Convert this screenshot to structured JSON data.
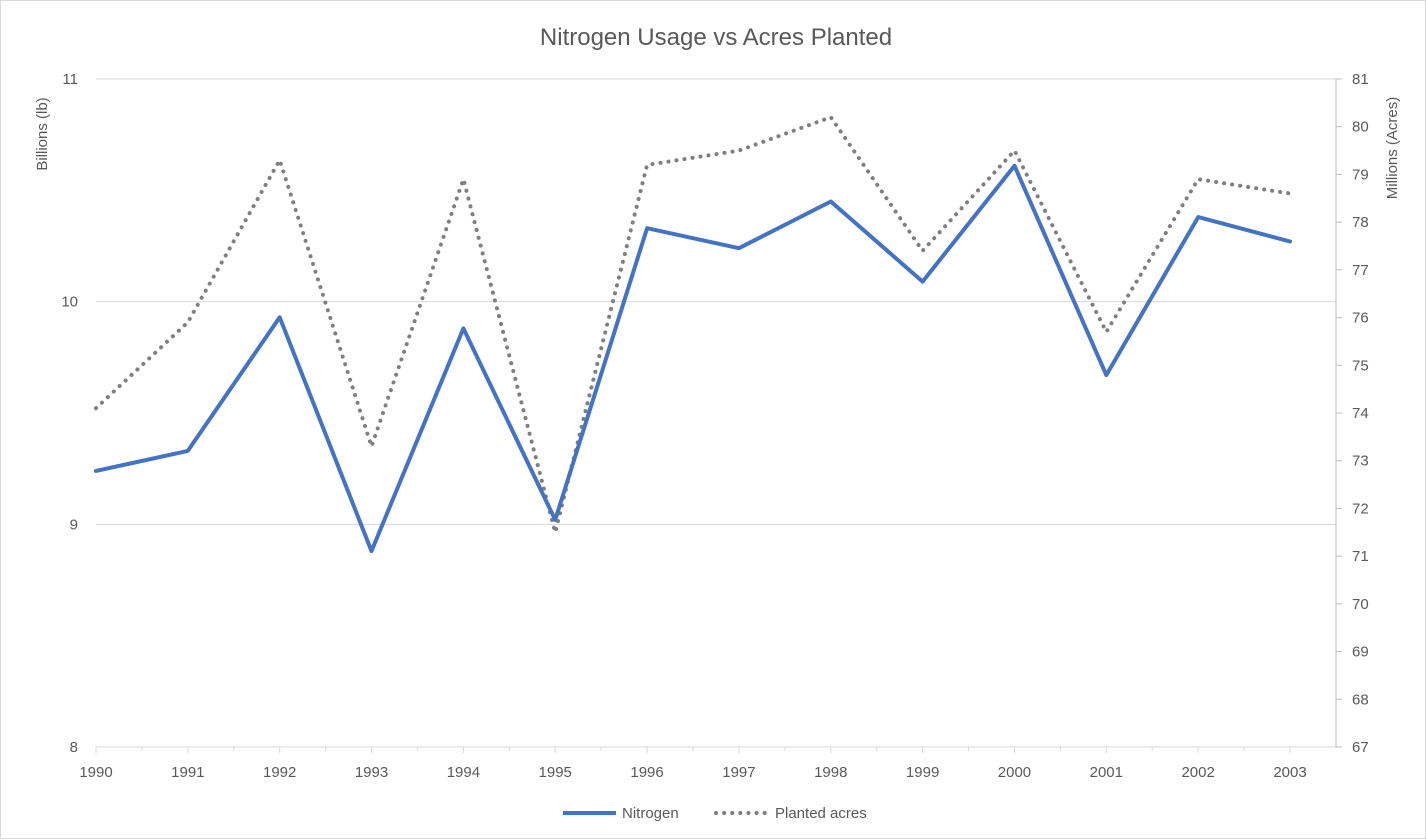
{
  "chart_data": {
    "type": "line",
    "title": "Nitrogen Usage vs Acres Planted",
    "categories": [
      "1990",
      "1991",
      "1992",
      "1993",
      "1994",
      "1995",
      "1996",
      "1997",
      "1998",
      "1999",
      "2000",
      "2001",
      "2002",
      "2003"
    ],
    "y_left": {
      "label": "Billions (lb)",
      "min": 8,
      "max": 11,
      "ticks": [
        "8",
        "9",
        "10",
        "11"
      ]
    },
    "y_right": {
      "label": "Millions (Acres)",
      "min": 67,
      "max": 81,
      "ticks": [
        "67",
        "68",
        "69",
        "70",
        "71",
        "72",
        "73",
        "74",
        "75",
        "76",
        "77",
        "78",
        "79",
        "80",
        "81"
      ]
    },
    "gridlines": true,
    "legend_position": "bottom",
    "series": [
      {
        "name": "Nitrogen",
        "axis": "left",
        "style": "solid",
        "color": "#4472c4",
        "values": [
          9.24,
          9.33,
          9.93,
          8.88,
          9.88,
          9.02,
          10.33,
          10.24,
          10.45,
          10.09,
          10.61,
          9.67,
          10.38,
          10.27
        ]
      },
      {
        "name": "Planted acres",
        "axis": "right",
        "style": "dotted",
        "color": "#7f7f7f",
        "values": [
          74.1,
          75.9,
          79.3,
          73.3,
          78.9,
          71.5,
          79.2,
          79.5,
          80.2,
          77.4,
          79.5,
          75.7,
          78.9,
          78.6
        ]
      }
    ]
  }
}
